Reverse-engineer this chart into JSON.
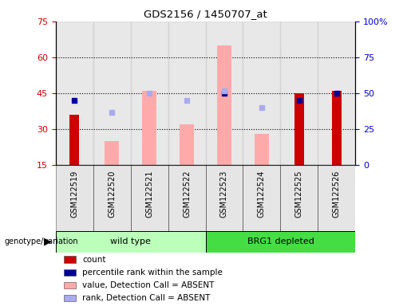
{
  "title": "GDS2156 / 1450707_at",
  "samples": [
    "GSM122519",
    "GSM122520",
    "GSM122521",
    "GSM122522",
    "GSM122523",
    "GSM122524",
    "GSM122525",
    "GSM122526"
  ],
  "count_values": [
    36,
    null,
    null,
    null,
    null,
    null,
    45,
    46
  ],
  "percentile_rank_values": [
    45,
    null,
    null,
    null,
    50,
    null,
    45,
    50
  ],
  "absent_value_bars": [
    null,
    25,
    46,
    32,
    65,
    28,
    null,
    null
  ],
  "absent_rank_dots": [
    null,
    37,
    50,
    45,
    52,
    40,
    null,
    null
  ],
  "left_yticks": [
    15,
    30,
    45,
    60,
    75
  ],
  "left_ylim": [
    15,
    75
  ],
  "right_yticks": [
    0,
    25,
    50,
    75,
    100
  ],
  "right_ylim": [
    0,
    100
  ],
  "right_color": "#0000cc",
  "left_color": "#cc0000",
  "bar_color_count": "#cc0000",
  "bar_color_absent_value": "#ffaaaa",
  "dot_color_percentile": "#000099",
  "dot_color_absent_rank": "#aaaaee",
  "grid_lines": [
    30,
    45,
    60
  ],
  "col_bg_color": "#cccccc",
  "group1_label": "wild type",
  "group2_label": "BRG1 depleted",
  "group1_color": "#bbffbb",
  "group2_color": "#44dd44",
  "legend_items": [
    {
      "label": "count",
      "color": "#cc0000"
    },
    {
      "label": "percentile rank within the sample",
      "color": "#000099"
    },
    {
      "label": "value, Detection Call = ABSENT",
      "color": "#ffaaaa"
    },
    {
      "label": "rank, Detection Call = ABSENT",
      "color": "#aaaaee"
    }
  ]
}
